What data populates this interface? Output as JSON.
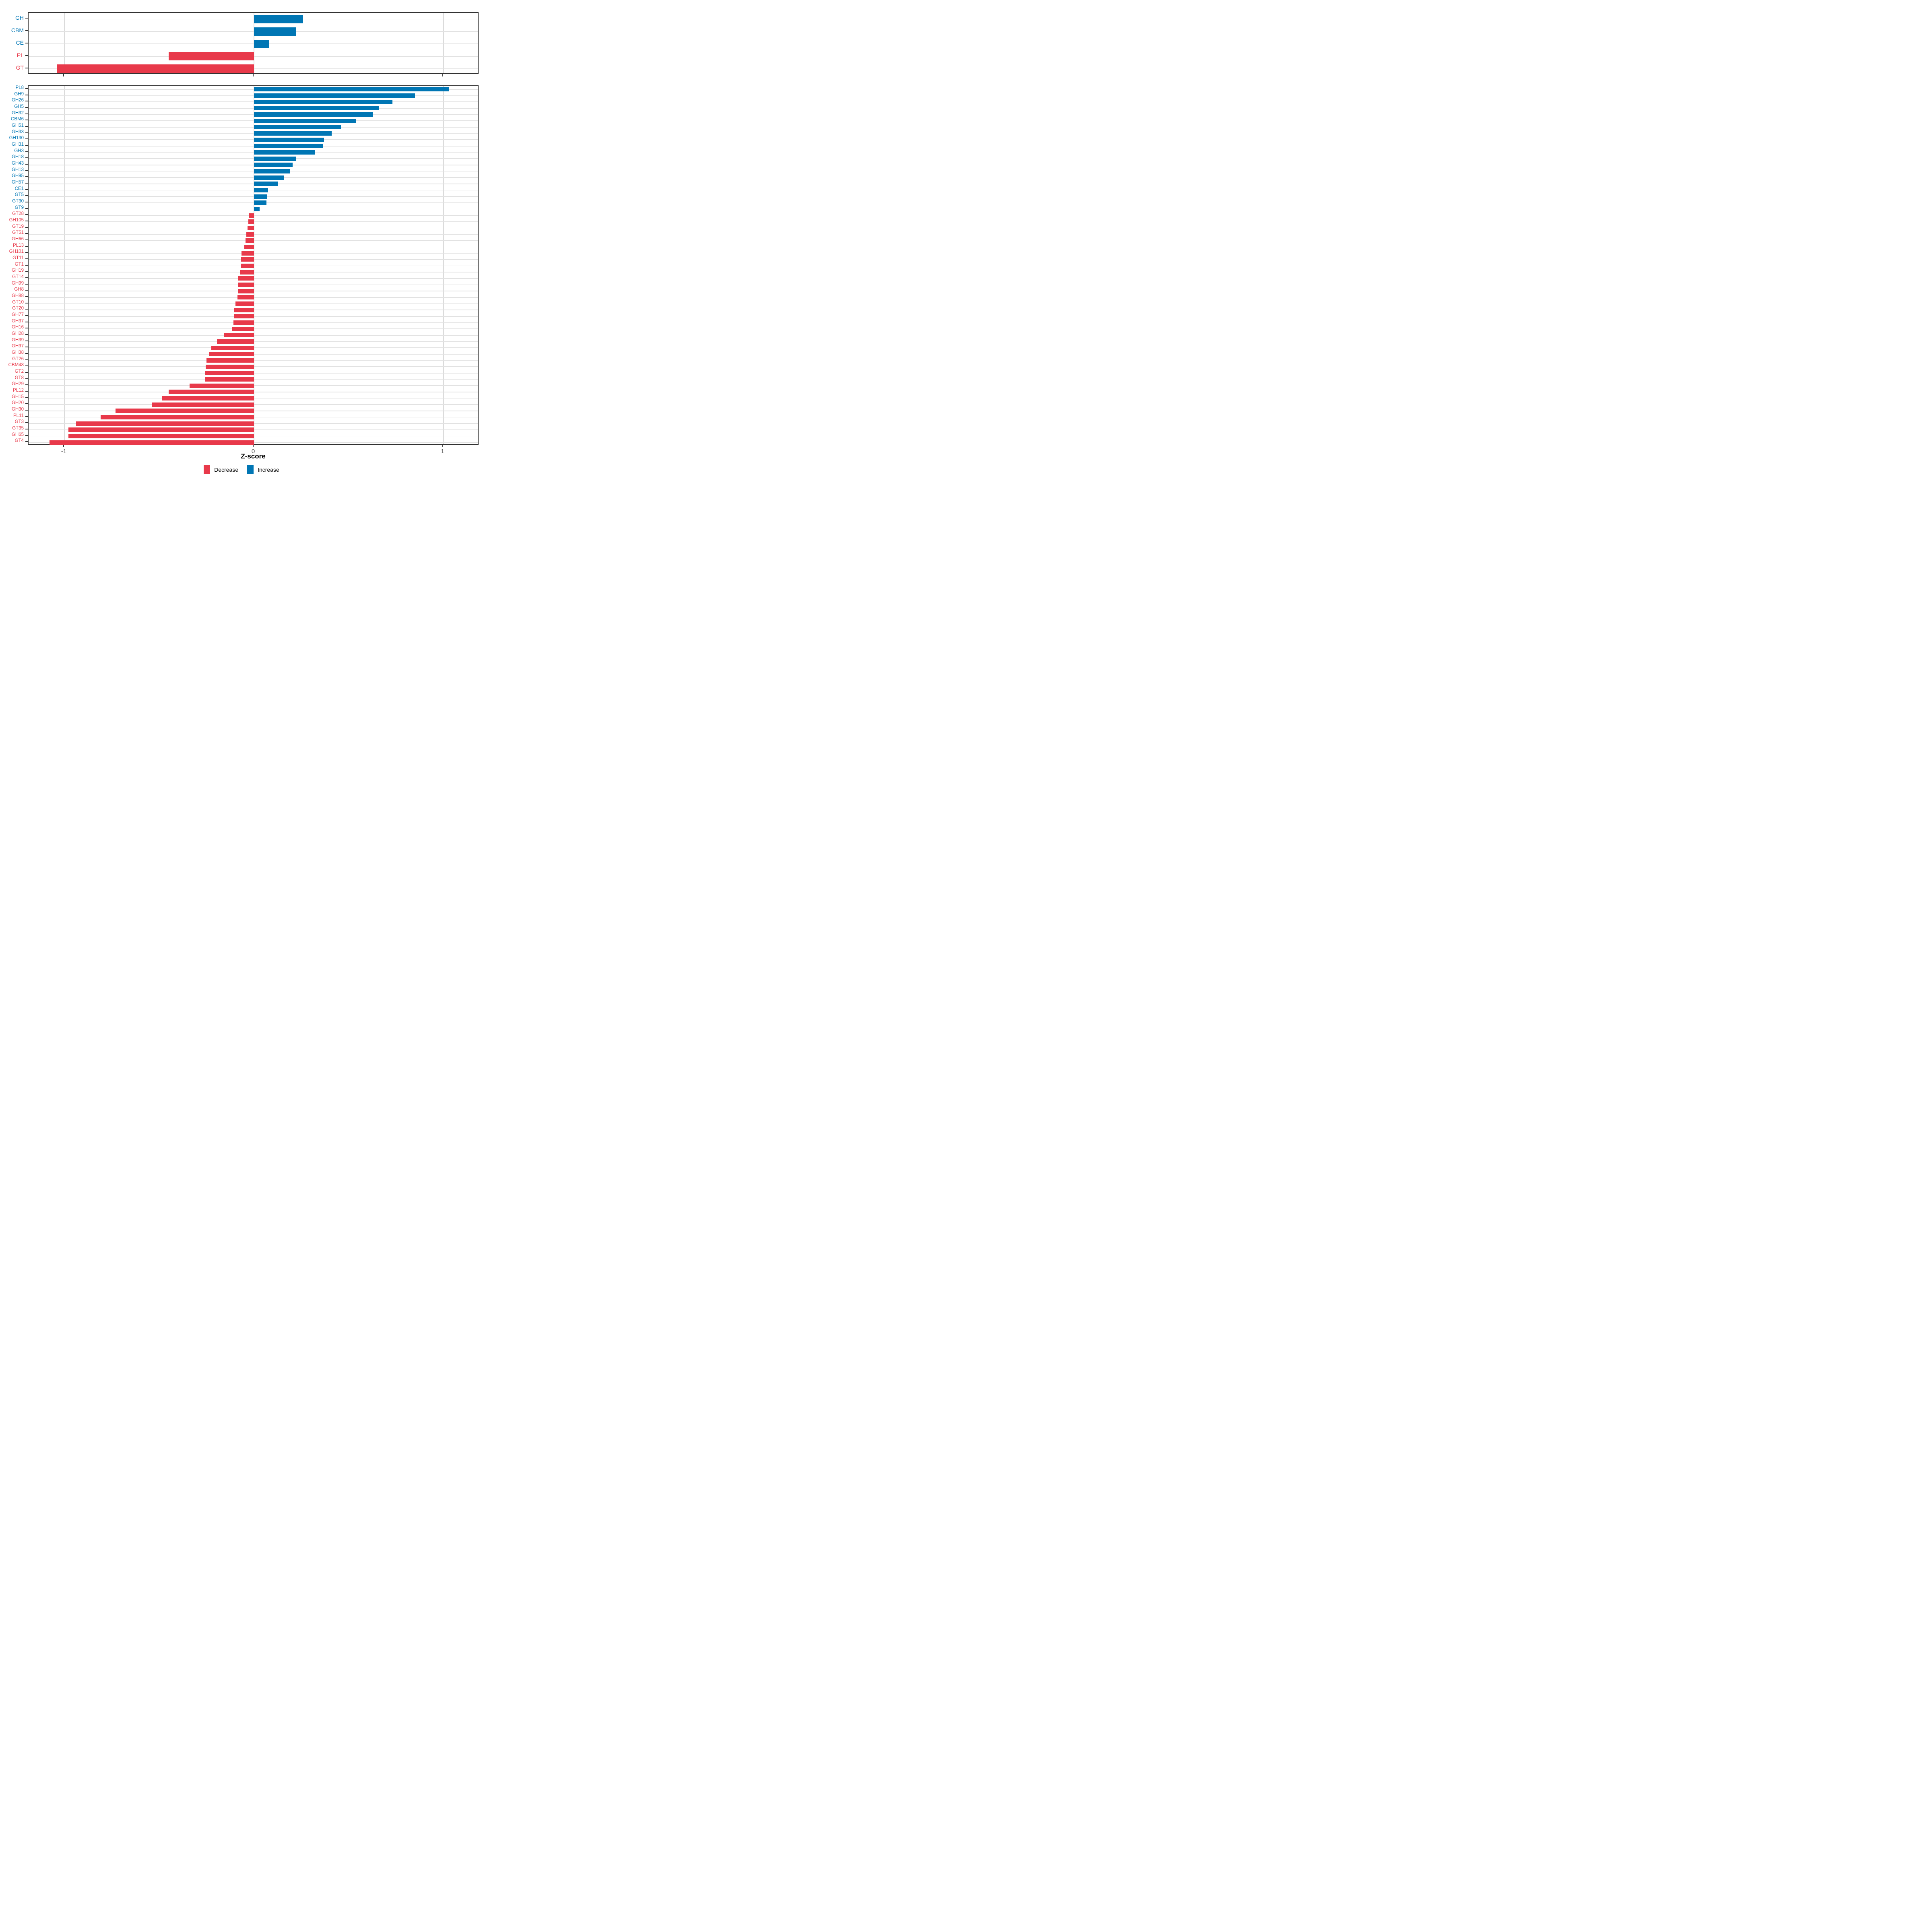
{
  "figure": {
    "background": "#ffffff",
    "axis": {
      "xlabel": "Z-score",
      "ticks": [
        -1,
        0,
        1
      ],
      "tick_labels": [
        "-1",
        "0",
        "1"
      ],
      "xlim": [
        -1.19,
        1.19
      ]
    },
    "colors": {
      "increase": "#0076B4",
      "decrease": "#E8394A",
      "grid_v": "#dbdbdb",
      "grid_h": "#e2e2e2",
      "panel_border": "#333333",
      "tick_text": "#4d4d4d"
    },
    "legend": [
      {
        "label": "Decrease",
        "color": "#E8394A"
      },
      {
        "label": "Increase",
        "color": "#0076B4"
      }
    ]
  },
  "chart_data": [
    {
      "type": "bar",
      "orientation": "horizontal",
      "panel": "top",
      "title": "",
      "xlabel": "Z-score",
      "xlim": [
        -1.19,
        1.19
      ],
      "categories": [
        "GH",
        "CBM",
        "CE",
        "PL",
        "GT"
      ],
      "values": [
        0.26,
        0.22,
        0.08,
        -0.45,
        -1.04
      ]
    },
    {
      "type": "bar",
      "orientation": "horizontal",
      "panel": "bottom",
      "title": "",
      "xlabel": "Z-score",
      "xlim": [
        -1.19,
        1.19
      ],
      "categories": [
        "PL8",
        "GH9",
        "GH26",
        "GH5",
        "GH32",
        "CBM6",
        "GH51",
        "GH33",
        "GH130",
        "GH31",
        "GH3",
        "GH18",
        "GH43",
        "GH13",
        "GH95",
        "GH57",
        "CE1",
        "GT5",
        "GT30",
        "GT9",
        "GT28",
        "GH105",
        "GT19",
        "GT51",
        "GH66",
        "PL13",
        "GH101",
        "GT11",
        "GT1",
        "GH19",
        "GT14",
        "GH99",
        "GH8",
        "GH88",
        "GT10",
        "GT20",
        "GH77",
        "GH37",
        "GH16",
        "GH28",
        "GH39",
        "GH97",
        "GH38",
        "GT26",
        "CBM48",
        "GT2",
        "GT8",
        "GH29",
        "PL12",
        "GH15",
        "GH20",
        "GH30",
        "PL11",
        "GT3",
        "GT35",
        "GH65",
        "GT4"
      ],
      "values": [
        1.03,
        0.85,
        0.73,
        0.66,
        0.63,
        0.54,
        0.46,
        0.41,
        0.37,
        0.365,
        0.32,
        0.22,
        0.205,
        0.19,
        0.16,
        0.125,
        0.075,
        0.07,
        0.065,
        0.03,
        -0.025,
        -0.03,
        -0.035,
        -0.04,
        -0.045,
        -0.05,
        -0.065,
        -0.068,
        -0.07,
        -0.072,
        -0.083,
        -0.084,
        -0.085,
        -0.087,
        -0.097,
        -0.104,
        -0.106,
        -0.108,
        -0.115,
        -0.16,
        -0.195,
        -0.225,
        -0.235,
        -0.25,
        -0.255,
        -0.257,
        -0.26,
        -0.34,
        -0.45,
        -0.485,
        -0.54,
        -0.73,
        -0.81,
        -0.94,
        -0.98,
        -0.98,
        -1.08
      ]
    }
  ]
}
